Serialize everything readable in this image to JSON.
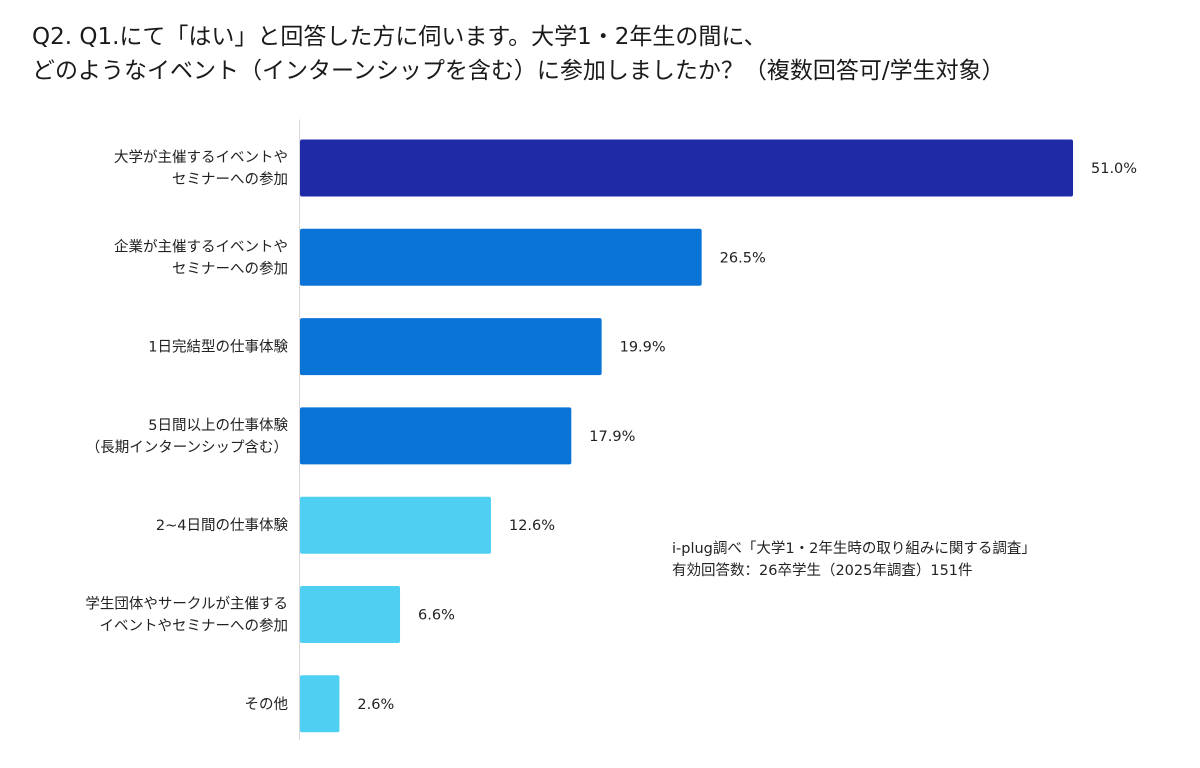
{
  "title": {
    "line1": "Q2. Q1.にて「はい」と回答した方に伺います。大学1・2年生の間に、",
    "line2": "どのようなイベント（インターンシップを含む）に参加しましたか？（複数回答可/学生対象）"
  },
  "source": {
    "line1": "i-plug調べ「大学1・2年生時の取り組みに関する調査」",
    "line2": "有効回答数：26卒学生（2025年調査）151件"
  },
  "colors": {
    "dark": "#1f2aa6",
    "medium": "#0a74d6",
    "light": "#4fd0f2",
    "axis": "#d9d9d9",
    "text": "#222222"
  },
  "chart_data": {
    "type": "bar",
    "orientation": "horizontal",
    "title": "Q2. Q1.にて「はい」と回答した方に伺います。大学1・2年生の間に、どのようなイベント（インターンシップを含む）に参加しましたか？（複数回答可/学生対象）",
    "xlabel": "",
    "ylabel": "",
    "xlim": [
      0,
      51
    ],
    "unit": "%",
    "categories": [
      [
        "大学が主催するイベントや",
        "セミナーへの参加"
      ],
      [
        "企業が主催するイベントや",
        "セミナーへの参加"
      ],
      [
        "1日完結型の仕事体験"
      ],
      [
        "5日間以上の仕事体験",
        "（長期インターンシップ含む）"
      ],
      [
        "2~4日間の仕事体験"
      ],
      [
        "学生団体やサークルが主催する",
        "イベントやセミナーへの参加"
      ],
      [
        "その他"
      ]
    ],
    "values": [
      51.0,
      26.5,
      19.9,
      17.9,
      12.6,
      6.6,
      2.6
    ],
    "labels": [
      "51.0%",
      "26.5%",
      "19.9%",
      "17.9%",
      "12.6%",
      "6.6%",
      "2.6%"
    ],
    "bar_color_keys": [
      "dark",
      "medium",
      "medium",
      "medium",
      "light",
      "light",
      "light"
    ]
  }
}
